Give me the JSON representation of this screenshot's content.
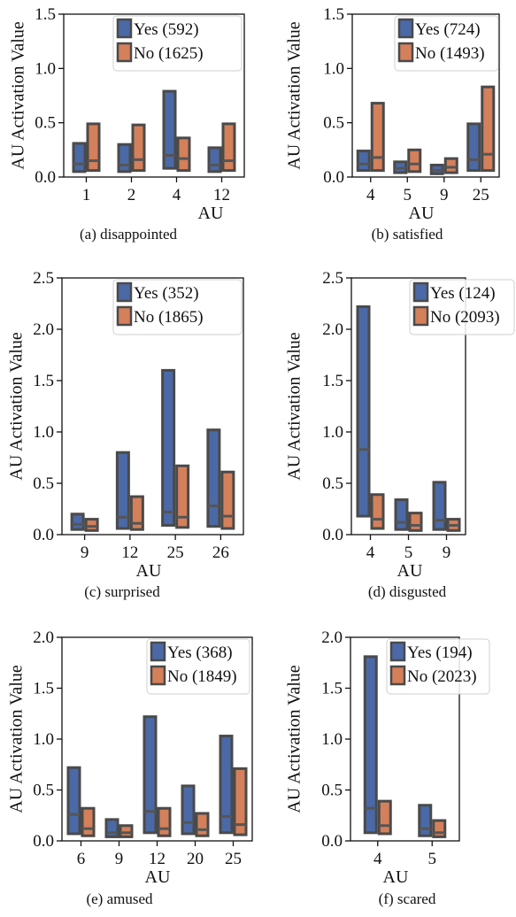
{
  "colors": {
    "yes": "#4a69a6",
    "no": "#d4805a",
    "edge": "#4a4a4a",
    "median": "#555555"
  },
  "chart_data": [
    {
      "type": "box",
      "caption": "(a) disappointed",
      "xlabel": "AU",
      "ylabel": "AU Activation Value",
      "ylim": [
        0,
        1.5
      ],
      "yticks": [
        "0.0",
        "0.5",
        "1.0",
        "1.5"
      ],
      "categories": [
        "1",
        "2",
        "4",
        "12"
      ],
      "legend_position": "top-right",
      "series": [
        {
          "name": "Yes (592)",
          "boxes": [
            {
              "q1": 0.05,
              "median": 0.12,
              "q3": 0.31
            },
            {
              "q1": 0.05,
              "median": 0.11,
              "q3": 0.3
            },
            {
              "q1": 0.08,
              "median": 0.2,
              "q3": 0.79
            },
            {
              "q1": 0.05,
              "median": 0.11,
              "q3": 0.27
            }
          ]
        },
        {
          "name": "No (1625)",
          "boxes": [
            {
              "q1": 0.06,
              "median": 0.15,
              "q3": 0.49
            },
            {
              "q1": 0.06,
              "median": 0.16,
              "q3": 0.48
            },
            {
              "q1": 0.06,
              "median": 0.17,
              "q3": 0.36
            },
            {
              "q1": 0.06,
              "median": 0.15,
              "q3": 0.49
            }
          ]
        }
      ]
    },
    {
      "type": "box",
      "caption": "(b) satisfied",
      "xlabel": "AU",
      "ylabel": "AU Activation Value",
      "ylim": [
        0,
        1.5
      ],
      "yticks": [
        "0.0",
        "0.5",
        "1.0",
        "1.5"
      ],
      "categories": [
        "4",
        "5",
        "9",
        "25"
      ],
      "legend_position": "top-right",
      "series": [
        {
          "name": "Yes (724)",
          "boxes": [
            {
              "q1": 0.06,
              "median": 0.12,
              "q3": 0.24
            },
            {
              "q1": 0.04,
              "median": 0.08,
              "q3": 0.14
            },
            {
              "q1": 0.03,
              "median": 0.06,
              "q3": 0.11
            },
            {
              "q1": 0.06,
              "median": 0.16,
              "q3": 0.49
            }
          ]
        },
        {
          "name": "No (1493)",
          "boxes": [
            {
              "q1": 0.06,
              "median": 0.18,
              "q3": 0.68
            },
            {
              "q1": 0.05,
              "median": 0.12,
              "q3": 0.25
            },
            {
              "q1": 0.04,
              "median": 0.09,
              "q3": 0.17
            },
            {
              "q1": 0.06,
              "median": 0.21,
              "q3": 0.83
            }
          ]
        }
      ]
    },
    {
      "type": "box",
      "caption": "(c) surprised",
      "xlabel": "AU",
      "ylabel": "AU Activation Value",
      "ylim": [
        0,
        2.5
      ],
      "yticks": [
        "0.0",
        "0.5",
        "1.0",
        "1.5",
        "2.0",
        "2.5"
      ],
      "categories": [
        "9",
        "12",
        "25",
        "26"
      ],
      "legend_position": "top-right",
      "series": [
        {
          "name": "Yes (352)",
          "boxes": [
            {
              "q1": 0.05,
              "median": 0.1,
              "q3": 0.2
            },
            {
              "q1": 0.06,
              "median": 0.17,
              "q3": 0.8
            },
            {
              "q1": 0.09,
              "median": 0.22,
              "q3": 1.6
            },
            {
              "q1": 0.08,
              "median": 0.28,
              "q3": 1.02
            }
          ]
        },
        {
          "name": "No (1865)",
          "boxes": [
            {
              "q1": 0.04,
              "median": 0.08,
              "q3": 0.15
            },
            {
              "q1": 0.05,
              "median": 0.11,
              "q3": 0.37
            },
            {
              "q1": 0.07,
              "median": 0.17,
              "q3": 0.67
            },
            {
              "q1": 0.06,
              "median": 0.18,
              "q3": 0.61
            }
          ]
        }
      ]
    },
    {
      "type": "box",
      "caption": "(d) disgusted",
      "xlabel": "AU",
      "ylabel": "AU Activation Value",
      "ylim": [
        0,
        2.5
      ],
      "yticks": [
        "0.0",
        "0.5",
        "1.0",
        "1.5",
        "2.0",
        "2.5"
      ],
      "categories": [
        "4",
        "5",
        "9"
      ],
      "legend_position": "top-right",
      "series": [
        {
          "name": "Yes (124)",
          "boxes": [
            {
              "q1": 0.18,
              "median": 0.83,
              "q3": 2.22
            },
            {
              "q1": 0.05,
              "median": 0.12,
              "q3": 0.34
            },
            {
              "q1": 0.05,
              "median": 0.14,
              "q3": 0.51
            }
          ]
        },
        {
          "name": "No (2093)",
          "boxes": [
            {
              "q1": 0.06,
              "median": 0.15,
              "q3": 0.39
            },
            {
              "q1": 0.04,
              "median": 0.09,
              "q3": 0.21
            },
            {
              "q1": 0.04,
              "median": 0.09,
              "q3": 0.15
            }
          ]
        }
      ]
    },
    {
      "type": "box",
      "caption": "(e) amused",
      "xlabel": "AU",
      "ylabel": "AU Activation Value",
      "ylim": [
        0,
        2.0
      ],
      "yticks": [
        "0.0",
        "0.5",
        "1.0",
        "1.5",
        "2.0"
      ],
      "categories": [
        "6",
        "9",
        "12",
        "20",
        "25"
      ],
      "legend_position": "top-right",
      "series": [
        {
          "name": "Yes (368)",
          "boxes": [
            {
              "q1": 0.07,
              "median": 0.26,
              "q3": 0.72
            },
            {
              "q1": 0.04,
              "median": 0.08,
              "q3": 0.21
            },
            {
              "q1": 0.08,
              "median": 0.29,
              "q3": 1.22
            },
            {
              "q1": 0.07,
              "median": 0.18,
              "q3": 0.54
            },
            {
              "q1": 0.08,
              "median": 0.24,
              "q3": 1.03
            }
          ]
        },
        {
          "name": "No (1849)",
          "boxes": [
            {
              "q1": 0.05,
              "median": 0.12,
              "q3": 0.32
            },
            {
              "q1": 0.04,
              "median": 0.08,
              "q3": 0.15
            },
            {
              "q1": 0.05,
              "median": 0.12,
              "q3": 0.32
            },
            {
              "q1": 0.05,
              "median": 0.11,
              "q3": 0.27
            },
            {
              "q1": 0.06,
              "median": 0.16,
              "q3": 0.71
            }
          ]
        }
      ]
    },
    {
      "type": "box",
      "caption": "(f) scared",
      "xlabel": "AU",
      "ylabel": "AU Activation Value",
      "ylim": [
        0,
        2.0
      ],
      "yticks": [
        "0.0",
        "0.5",
        "1.0",
        "1.5",
        "2.0"
      ],
      "categories": [
        "4",
        "5"
      ],
      "legend_position": "top-right",
      "series": [
        {
          "name": "Yes (194)",
          "boxes": [
            {
              "q1": 0.08,
              "median": 0.32,
              "q3": 1.81
            },
            {
              "q1": 0.05,
              "median": 0.12,
              "q3": 0.35
            }
          ]
        },
        {
          "name": "No (2023)",
          "boxes": [
            {
              "q1": 0.07,
              "median": 0.15,
              "q3": 0.39
            },
            {
              "q1": 0.04,
              "median": 0.08,
              "q3": 0.2
            }
          ]
        }
      ]
    }
  ]
}
